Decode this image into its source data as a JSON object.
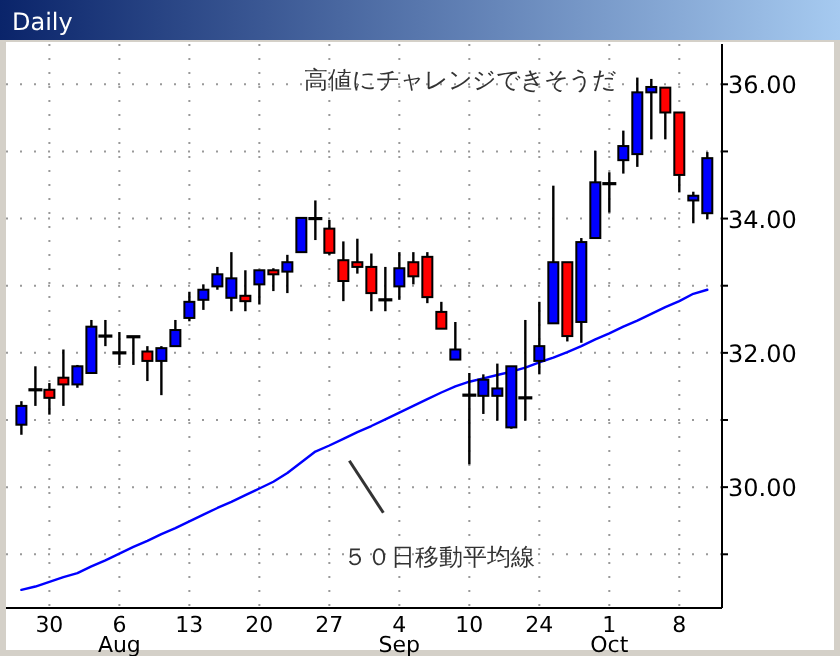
{
  "chart_data": {
    "type": "candlestick",
    "title": "Daily",
    "categories": [
      null,
      null,
      "30",
      null,
      null,
      null,
      null,
      "6\nAug",
      null,
      null,
      null,
      null,
      "13",
      null,
      null,
      null,
      null,
      "20",
      null,
      null,
      null,
      null,
      "27",
      null,
      null,
      null,
      null,
      "4\nSep",
      null,
      null,
      null,
      null,
      "10",
      null,
      null,
      null,
      null,
      "24",
      null,
      null,
      null,
      null,
      "1\nOct",
      null,
      null,
      null,
      null,
      "8",
      null,
      null
    ],
    "series": [
      {
        "ohlc": [
          [
            30.93,
            31.28,
            30.78,
            31.21
          ],
          [
            31.45,
            31.8,
            31.21,
            31.45
          ],
          [
            31.45,
            31.55,
            31.08,
            31.33
          ],
          [
            31.63,
            32.05,
            31.21,
            31.53
          ],
          [
            31.53,
            31.82,
            31.48,
            31.8
          ],
          [
            31.7,
            32.49,
            31.7,
            32.39
          ],
          [
            32.25,
            32.49,
            32.1,
            32.25
          ],
          [
            32.0,
            32.31,
            31.82,
            32.0
          ],
          [
            32.24,
            32.24,
            31.82,
            32.24
          ],
          [
            32.02,
            32.1,
            31.58,
            31.88
          ],
          [
            31.88,
            32.1,
            31.37,
            32.07
          ],
          [
            32.1,
            32.49,
            32.1,
            32.34
          ],
          [
            32.52,
            32.91,
            32.47,
            32.76
          ],
          [
            32.79,
            33.02,
            32.64,
            32.94
          ],
          [
            32.99,
            33.28,
            32.94,
            33.17
          ],
          [
            32.82,
            33.5,
            32.62,
            33.11
          ],
          [
            32.85,
            33.23,
            32.62,
            32.77
          ],
          [
            33.02,
            33.23,
            32.72,
            33.23
          ],
          [
            33.23,
            33.26,
            32.92,
            33.17
          ],
          [
            33.21,
            33.46,
            32.89,
            33.35
          ],
          [
            33.5,
            34.01,
            33.5,
            34.01
          ],
          [
            34.0,
            34.27,
            33.68,
            34.0
          ],
          [
            33.85,
            33.98,
            33.46,
            33.49
          ],
          [
            33.38,
            33.66,
            32.77,
            33.07
          ],
          [
            33.35,
            33.7,
            33.18,
            33.28
          ],
          [
            33.28,
            33.48,
            32.62,
            32.89
          ],
          [
            32.79,
            33.28,
            32.62,
            32.79
          ],
          [
            32.99,
            33.5,
            32.79,
            33.26
          ],
          [
            33.35,
            33.5,
            33.02,
            33.14
          ],
          [
            33.43,
            33.5,
            32.74,
            32.83
          ],
          [
            32.61,
            32.76,
            32.36,
            32.36
          ],
          [
            31.9,
            32.46,
            31.9,
            32.05
          ],
          [
            31.37,
            31.7,
            30.34,
            31.37
          ],
          [
            31.36,
            31.68,
            31.09,
            31.6
          ],
          [
            31.36,
            31.84,
            30.99,
            31.47
          ],
          [
            30.89,
            31.8,
            30.87,
            31.8
          ],
          [
            31.33,
            32.49,
            30.99,
            31.33
          ],
          [
            31.88,
            32.76,
            31.68,
            32.1
          ],
          [
            32.44,
            34.49,
            32.44,
            33.35
          ],
          [
            33.35,
            33.35,
            32.17,
            32.25
          ],
          [
            32.46,
            33.71,
            32.15,
            33.65
          ],
          [
            33.71,
            35.01,
            33.71,
            34.54
          ],
          [
            34.52,
            34.69,
            34.09,
            34.52
          ],
          [
            34.87,
            35.31,
            34.67,
            35.08
          ],
          [
            34.96,
            36.1,
            34.77,
            35.88
          ],
          [
            35.88,
            36.08,
            35.18,
            35.96
          ],
          [
            35.95,
            35.95,
            35.18,
            35.58
          ],
          [
            35.58,
            35.58,
            34.39,
            34.65
          ],
          [
            34.27,
            34.4,
            33.93,
            34.34
          ],
          [
            34.08,
            34.99,
            33.99,
            34.9
          ]
        ],
        "colors": [
          "#0000ff",
          "#000000",
          "#ff0000",
          "#ff0000",
          "#0000ff",
          "#0000ff",
          "#000000",
          "#000000",
          "#000000",
          "#ff0000",
          "#0000ff",
          "#0000ff",
          "#0000ff",
          "#0000ff",
          "#0000ff",
          "#0000ff",
          "#ff0000",
          "#0000ff",
          "#ff0000",
          "#0000ff",
          "#0000ff",
          "#000000",
          "#ff0000",
          "#ff0000",
          "#ff0000",
          "#ff0000",
          "#000000",
          "#0000ff",
          "#ff0000",
          "#ff0000",
          "#ff0000",
          "#0000ff",
          "#000000",
          "#0000ff",
          "#0000ff",
          "#0000ff",
          "#000000",
          "#0000ff",
          "#0000ff",
          "#ff0000",
          "#0000ff",
          "#0000ff",
          "#000000",
          "#0000ff",
          "#0000ff",
          "#0000ff",
          "#ff0000",
          "#ff0000",
          "#0000ff",
          "#0000ff"
        ]
      },
      {
        "type": "line",
        "name": "５０日移動平均線",
        "color": "#0000ff",
        "values": [
          28.47,
          28.52,
          28.59,
          28.66,
          28.72,
          28.82,
          28.91,
          29.01,
          29.11,
          29.2,
          29.3,
          29.39,
          29.49,
          29.59,
          29.69,
          29.78,
          29.88,
          29.98,
          30.08,
          30.21,
          30.37,
          30.53,
          30.62,
          30.72,
          30.82,
          30.91,
          31.01,
          31.11,
          31.21,
          31.31,
          31.41,
          31.5,
          31.57,
          31.62,
          31.67,
          31.72,
          31.78,
          31.86,
          31.93,
          32.01,
          32.1,
          32.2,
          32.29,
          32.39,
          32.48,
          32.58,
          32.68,
          32.77,
          32.88,
          32.94
        ]
      }
    ],
    "ylim": [
      28.2,
      36.6
    ],
    "yticks": [
      {
        "value": 29,
        "label": null
      },
      {
        "value": 30,
        "label": "30.00"
      },
      {
        "value": 31,
        "label": null
      },
      {
        "value": 32,
        "label": "32.00"
      },
      {
        "value": 33,
        "label": null
      },
      {
        "value": 34,
        "label": "34.00"
      },
      {
        "value": 35,
        "label": null
      },
      {
        "value": 36,
        "label": "36.00"
      }
    ],
    "grid": true,
    "annotations": [
      "高値にチャレンジできそうだ"
    ]
  }
}
